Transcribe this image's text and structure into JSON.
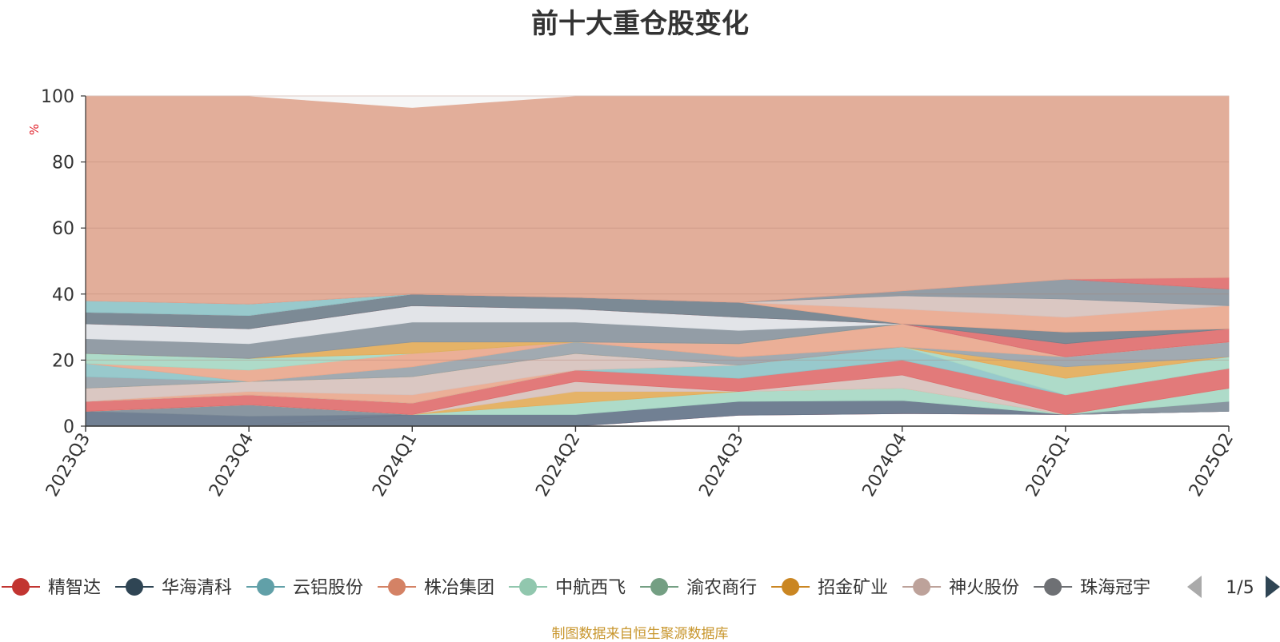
{
  "chart_data": {
    "type": "area",
    "title": "前十大重仓股变化",
    "ylabel": "%",
    "ylim": [
      0,
      100
    ],
    "yticks": [
      "0",
      "20",
      "40",
      "60",
      "80",
      "100"
    ],
    "categories": [
      "2023Q3",
      "2023Q4",
      "2024Q1",
      "2024Q2",
      "2024Q3",
      "2024Q4",
      "2025Q1",
      "2025Q2"
    ],
    "grid": true,
    "legend_position": "bottom",
    "legend": {
      "items": [
        {
          "name": "精智达",
          "color": "#c23531"
        },
        {
          "name": "华海清科",
          "color": "#2f4554"
        },
        {
          "name": "云铝股份",
          "color": "#61a0a8"
        },
        {
          "name": "株冶集团",
          "color": "#d48265"
        },
        {
          "name": "中航西飞",
          "color": "#91c7ae"
        },
        {
          "name": "渝农商行",
          "color": "#749f83"
        },
        {
          "name": "招金矿业",
          "color": "#ca8622"
        },
        {
          "name": "神火股份",
          "color": "#bda29a"
        },
        {
          "name": "珠海冠宇",
          "color": "#6e7074"
        }
      ],
      "page": "1/5"
    },
    "bands": [
      {
        "color": "#e06666",
        "lower": [
          null,
          null,
          null,
          0,
          3.3,
          3.8,
          3.5,
          4.5
        ],
        "upper": [
          null,
          null,
          null,
          0,
          3.3,
          3.8,
          3.5,
          4.5
        ]
      },
      {
        "color": "#e9a88e",
        "lower": [
          null,
          0,
          3.5,
          null,
          null,
          null,
          null,
          null
        ],
        "upper": [
          null,
          0,
          3.5,
          null,
          null,
          null,
          null,
          null
        ]
      },
      {
        "color": "#65758a",
        "lower": [
          0,
          0,
          0,
          0,
          3.3,
          3.8,
          3.5,
          4.5
        ],
        "upper": [
          4.5,
          3.0,
          3.5,
          3.5,
          7.5,
          7.8,
          3.5,
          4.5
        ]
      },
      {
        "color": "#7f8d99",
        "lower": [
          4.5,
          3.0,
          3.5,
          3.5,
          7.5,
          7.8,
          3.5,
          4.5
        ],
        "upper": [
          4.5,
          6.5,
          3.5,
          3.5,
          7.5,
          7.8,
          3.5,
          7.5
        ]
      },
      {
        "color": "#a7d8c4",
        "lower": [
          4.5,
          6.5,
          3.5,
          3.5,
          7.5,
          7.8,
          3.5,
          7.5
        ],
        "upper": [
          4.5,
          6.5,
          3.5,
          7.0,
          10.5,
          11.5,
          3.5,
          11.5
        ]
      },
      {
        "color": "#e3ad5a",
        "lower": [
          4.5,
          6.5,
          3.5,
          7.0,
          10.5,
          11.5,
          3.5,
          11.5
        ],
        "upper": [
          4.5,
          6.5,
          3.5,
          10.5,
          10.5,
          11.5,
          3.5,
          11.5
        ]
      },
      {
        "color": "#d7c2bd",
        "lower": [
          4.5,
          6.5,
          3.5,
          10.5,
          10.5,
          11.5,
          3.5,
          11.5
        ],
        "upper": [
          4.5,
          6.5,
          3.5,
          13.5,
          10.5,
          15.5,
          3.5,
          11.5
        ]
      },
      {
        "color": "#df6f6f",
        "lower": [
          4.5,
          6.5,
          3.5,
          13.5,
          10.5,
          15.5,
          3.5,
          11.5
        ],
        "upper": [
          7.5,
          9.5,
          7.0,
          17.0,
          14.5,
          20.0,
          9.5,
          17.5
        ]
      },
      {
        "color": "#8fc4c8",
        "lower": [
          7.5,
          9.5,
          7.0,
          17.0,
          14.5,
          20.0,
          9.5,
          17.5
        ],
        "upper": [
          7.5,
          9.5,
          7.0,
          17.0,
          18.5,
          24.0,
          9.5,
          17.5
        ]
      },
      {
        "color": "#a7d8c4",
        "lower": [
          7.5,
          9.5,
          7.0,
          17.0,
          18.5,
          24.0,
          9.5,
          17.5
        ],
        "upper": [
          7.5,
          9.5,
          7.0,
          17.0,
          18.5,
          24.0,
          14.5,
          21.0
        ]
      },
      {
        "color": "#e9a88e",
        "lower": [
          7.5,
          9.5,
          7.0,
          17.0,
          18.5,
          24.0,
          14.5,
          21.0
        ],
        "upper": [
          7.5,
          10.5,
          9.5,
          17.0,
          18.5,
          24.0,
          14.5,
          21.0
        ]
      },
      {
        "color": "#d7c2bd",
        "lower": [
          7.5,
          10.5,
          9.5,
          17.0,
          18.5,
          24.0,
          14.5,
          21.0
        ],
        "upper": [
          11.5,
          13.5,
          15.0,
          22.0,
          18.5,
          24.0,
          14.5,
          21.0
        ]
      },
      {
        "color": "#e3ad5a",
        "lower": [
          11.5,
          13.5,
          15.0,
          22.0,
          18.5,
          24.0,
          14.5,
          21.0
        ],
        "upper": [
          11.5,
          13.5,
          15.0,
          22.0,
          18.5,
          24.0,
          18.0,
          21.0
        ]
      },
      {
        "color": "#99a3aa",
        "lower": [
          11.5,
          13.5,
          15.0,
          22.0,
          18.5,
          24.0,
          18.0,
          21.0
        ],
        "upper": [
          15.0,
          13.5,
          18.0,
          25.5,
          21.0,
          24.0,
          21.0,
          25.5
        ]
      },
      {
        "color": "#8fc4c8",
        "lower": [
          15.0,
          13.5,
          18.0,
          25.5,
          21.0,
          24.0,
          21.0,
          25.5
        ],
        "upper": [
          19.0,
          13.5,
          18.0,
          25.5,
          21.0,
          24.0,
          21.0,
          25.5
        ]
      },
      {
        "color": "#e9a88e",
        "lower": [
          19.0,
          13.5,
          18.0,
          25.5,
          21.0,
          24.0,
          21.0,
          25.5
        ],
        "upper": [
          19.0,
          17.0,
          22.0,
          25.5,
          25.0,
          31.0,
          21.0,
          25.5
        ]
      },
      {
        "color": "#a7d8c4",
        "lower": [
          19.0,
          17.0,
          22.0,
          25.5,
          25.0,
          31.0,
          21.0,
          25.5
        ],
        "upper": [
          22.0,
          20.5,
          22.0,
          25.5,
          25.0,
          31.0,
          21.0,
          25.5
        ]
      },
      {
        "color": "#e3ad5a",
        "lower": [
          22.0,
          20.5,
          22.0,
          25.5,
          25.0,
          31.0,
          21.0,
          25.5
        ],
        "upper": [
          22.0,
          20.5,
          25.5,
          25.5,
          25.0,
          31.0,
          21.0,
          25.5
        ]
      },
      {
        "color": "#8a959e",
        "lower": [
          22.0,
          20.5,
          25.5,
          25.5,
          25.0,
          31.0,
          21.0,
          25.5
        ],
        "upper": [
          26.5,
          25.0,
          31.5,
          31.5,
          29.0,
          31.0,
          21.0,
          25.5
        ]
      },
      {
        "color": "#dfe2e6",
        "lower": [
          26.5,
          25.0,
          31.5,
          31.5,
          29.0,
          31.0,
          21.0,
          25.5
        ],
        "upper": [
          31.0,
          29.5,
          36.5,
          35.5,
          33.0,
          31.0,
          21.0,
          25.5
        ]
      },
      {
        "color": "#df6f6f",
        "lower": [
          31.0,
          29.5,
          36.5,
          35.5,
          33.0,
          31.0,
          21.0,
          25.5
        ],
        "upper": [
          31.0,
          29.5,
          36.5,
          35.5,
          33.0,
          31.0,
          25.0,
          29.5
        ]
      },
      {
        "color": "#71808c",
        "lower": [
          31.0,
          29.5,
          36.5,
          35.5,
          33.0,
          31.0,
          25.0,
          29.5
        ],
        "upper": [
          34.5,
          33.5,
          40.0,
          39.0,
          37.5,
          31.0,
          28.5,
          29.5
        ]
      },
      {
        "color": "#e9a88e",
        "lower": [
          34.5,
          33.5,
          40.0,
          39.0,
          37.5,
          31.0,
          28.5,
          29.5
        ],
        "upper": [
          34.5,
          33.5,
          40.0,
          39.0,
          37.5,
          35.5,
          33.0,
          36.5
        ]
      },
      {
        "color": "#d7c2bd",
        "lower": [
          34.5,
          33.5,
          40.0,
          39.0,
          37.5,
          35.5,
          33.0,
          36.5
        ],
        "upper": [
          34.5,
          33.5,
          40.0,
          39.0,
          37.5,
          39.5,
          38.5,
          36.5
        ]
      },
      {
        "color": "#8a959e",
        "lower": [
          34.5,
          33.5,
          40.0,
          39.0,
          37.5,
          39.5,
          38.5,
          36.5
        ],
        "upper": [
          34.5,
          33.5,
          40.0,
          39.0,
          37.5,
          41.0,
          44.5,
          41.5
        ]
      },
      {
        "color": "#8fc4c8",
        "lower": [
          34.5,
          33.5,
          40.0,
          39.0,
          37.5,
          41.0,
          44.5,
          41.5
        ],
        "upper": [
          38.0,
          37.0,
          40.0,
          39.0,
          37.5,
          41.0,
          44.5,
          41.5
        ]
      },
      {
        "color": "#df6f6f",
        "lower": [
          38.0,
          37.0,
          40.0,
          39.0,
          37.5,
          41.0,
          44.5,
          41.5
        ],
        "upper": [
          38.0,
          37.0,
          40.0,
          39.0,
          37.5,
          41.0,
          44.5,
          45.0
        ]
      },
      {
        "color": "#e0a791",
        "lower": [
          38.0,
          37.0,
          40.0,
          39.0,
          37.5,
          41.0,
          44.5,
          45.0
        ],
        "upper": [
          100,
          100,
          96.5,
          100,
          100,
          100,
          100,
          100
        ]
      },
      {
        "color": "#f5f5f5",
        "lower": [
          100,
          100,
          96.5,
          100,
          100,
          100,
          100,
          100
        ],
        "upper": [
          100,
          100,
          100,
          100,
          100,
          100,
          100,
          100
        ]
      }
    ]
  },
  "footer": {
    "source": "制图数据来自恒生聚源数据库"
  }
}
